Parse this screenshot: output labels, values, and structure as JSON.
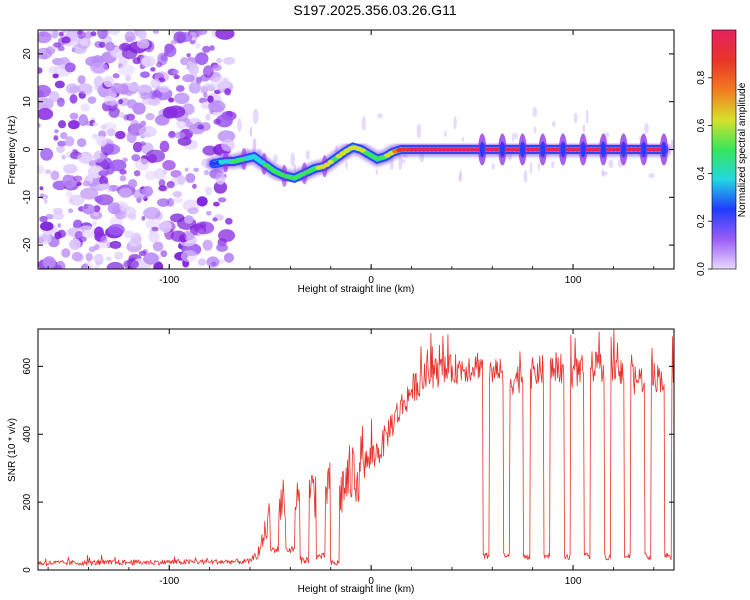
{
  "title": "S197.2025.356.03.26.G11",
  "colors": {
    "snr_line": "#e8302a",
    "track_cool": "#1e3cff",
    "track_mid": "#23d8e0",
    "track_warm": "#7ee03a",
    "track_hot": "#e8342a",
    "noise": "#8a2be2"
  },
  "chart_data": [
    {
      "type": "heatmap",
      "title": "",
      "xlabel": "Height of straight line (km)",
      "ylabel": "Frequency (Hz)",
      "xlim": [
        -165,
        150
      ],
      "ylim": [
        -25,
        25
      ],
      "xticks": [
        -100,
        0,
        100
      ],
      "xtick_labels": [
        "-100",
        "0",
        "100"
      ],
      "yticks": [
        -20,
        -10,
        0,
        10,
        20
      ],
      "ytick_labels": [
        "-20",
        "-10",
        "0",
        "10",
        "20"
      ],
      "colorbar": {
        "label": "Normalized spectral amplitude",
        "range": [
          0,
          1
        ],
        "ticks": [
          0,
          0.2,
          0.4,
          0.6,
          0.8
        ],
        "tick_labels": [
          "0.0",
          "0.2",
          "0.4",
          "0.6",
          "0.8"
        ],
        "colors": [
          "#e9d9ff",
          "#9b5cf5",
          "#1e3cff",
          "#23d8e0",
          "#37e65a",
          "#d8e02a",
          "#f27a1f",
          "#e8342a",
          "#e8215f"
        ]
      },
      "ridge": {
        "x": [
          -78,
          -72,
          -68,
          -63,
          -58,
          -53,
          -48,
          -43,
          -38,
          -33,
          -28,
          -23,
          -18,
          -13,
          -9,
          -5,
          -1,
          3,
          7,
          11,
          15,
          20,
          30,
          50,
          70,
          90,
          110,
          130,
          145
        ],
        "freq": [
          -3,
          -2.5,
          -2.5,
          -2,
          -1.5,
          -3,
          -4.5,
          -5.5,
          -6,
          -5,
          -4,
          -3.5,
          -2,
          -0.5,
          0.5,
          0,
          -1,
          -2,
          -1.5,
          -0.5,
          0,
          0,
          0,
          0,
          0,
          0,
          0,
          0,
          0
        ],
        "amplitude": [
          0.25,
          0.4,
          0.45,
          0.45,
          0.35,
          0.45,
          0.5,
          0.45,
          0.45,
          0.5,
          0.55,
          0.6,
          0.55,
          0.6,
          0.6,
          0.6,
          0.5,
          0.45,
          0.55,
          0.7,
          0.9,
          0.95,
          0.95,
          0.95,
          0.95,
          0.95,
          0.95,
          0.95,
          0.95
        ]
      },
      "gap_heights_km": [
        55,
        65,
        75,
        85,
        95,
        105,
        115,
        125,
        135,
        145
      ]
    },
    {
      "type": "line",
      "title": "",
      "xlabel": "Height of straight line (km)",
      "ylabel": "SNR (10 * v/v)",
      "xlim": [
        -165,
        150
      ],
      "ylim": [
        0,
        710
      ],
      "xticks": [
        -100,
        0,
        100
      ],
      "xtick_labels": [
        "-100",
        "0",
        "100"
      ],
      "yticks": [
        0,
        200,
        400,
        600
      ],
      "ytick_labels": [
        "0",
        "200",
        "400",
        "600"
      ],
      "series": [
        {
          "name": "SNR",
          "envelope_x": [
            -165,
            -60,
            -55,
            -50,
            -45,
            -40,
            -35,
            -30,
            -25,
            -20,
            -15,
            -10,
            -5,
            0,
            5,
            10,
            15,
            20,
            25,
            30,
            40,
            50,
            55,
            60,
            70,
            80,
            90,
            100,
            110,
            120,
            130,
            140,
            150
          ],
          "envelope_y": [
            20,
            25,
            60,
            160,
            200,
            220,
            200,
            230,
            240,
            260,
            230,
            280,
            300,
            330,
            360,
            430,
            480,
            530,
            560,
            580,
            590,
            600,
            610,
            590,
            560,
            580,
            600,
            580,
            600,
            590,
            560,
            570,
            560
          ],
          "dropout_x": [
            -48,
            -40,
            -33,
            -25,
            -18,
            57,
            67,
            77,
            87,
            97,
            107,
            117,
            127,
            137,
            147
          ],
          "dropout_level": [
            60,
            60,
            30,
            40,
            20,
            40,
            40,
            40,
            40,
            40,
            40,
            40,
            40,
            40,
            40
          ]
        }
      ]
    }
  ]
}
